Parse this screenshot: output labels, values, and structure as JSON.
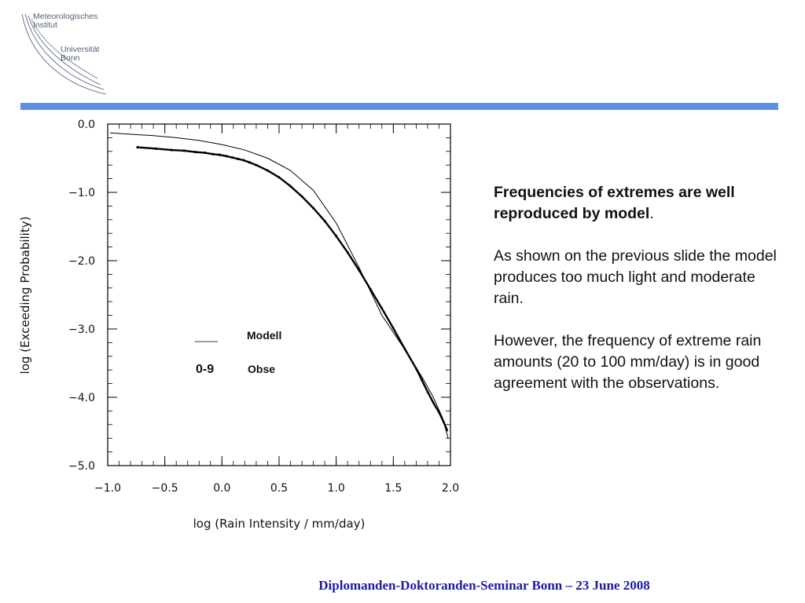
{
  "logo": {
    "line1": "Meteorologisches",
    "line2": "Institut",
    "line3": "Universität",
    "line4": "Bonn"
  },
  "colors": {
    "bar": "#5f8fe0",
    "footer": "#1a1aa6",
    "logo": "#55607a"
  },
  "chart_data": {
    "type": "line",
    "xlabel": "log (Rain Intensity / mm/day)",
    "ylabel": "log (Exceeding Probability)",
    "xlim": [
      -1.0,
      2.0
    ],
    "ylim": [
      -5.0,
      0.0
    ],
    "xticks": [
      "−1.0",
      "−0.5",
      "0.0",
      "0.5",
      "1.0",
      "1.5",
      "2.0"
    ],
    "yticks": [
      "0.0",
      "−1.0",
      "−2.0",
      "−3.0",
      "−4.0",
      "−5.0"
    ],
    "legend": {
      "line_sample": "____",
      "line_label": "Modell",
      "marker_sample": "0-9",
      "marker_label": "Obse"
    },
    "series": [
      {
        "name": "Modell",
        "style": "line",
        "x": [
          -0.98,
          -0.8,
          -0.6,
          -0.4,
          -0.2,
          0.0,
          0.2,
          0.4,
          0.6,
          0.8,
          1.0,
          1.2,
          1.4,
          1.6,
          1.75,
          1.85,
          1.93,
          1.98
        ],
        "y": [
          -0.13,
          -0.15,
          -0.17,
          -0.2,
          -0.24,
          -0.3,
          -0.38,
          -0.5,
          -0.68,
          -0.97,
          -1.45,
          -2.1,
          -2.8,
          -3.3,
          -3.7,
          -4.0,
          -4.3,
          -4.6
        ]
      },
      {
        "name": "Obse",
        "style": "markers",
        "x": [
          -0.74,
          -0.58,
          -0.44,
          -0.33,
          -0.23,
          -0.15,
          -0.08,
          -0.02,
          0.04,
          0.09,
          0.14,
          0.19,
          0.24,
          0.3,
          0.4,
          0.5,
          0.6,
          0.7,
          0.8,
          0.9,
          1.0,
          1.1,
          1.2,
          1.3,
          1.4,
          1.5,
          1.6,
          1.7,
          1.75,
          1.8,
          1.85,
          1.9,
          1.94,
          1.97
        ],
        "y": [
          -0.34,
          -0.36,
          -0.38,
          -0.39,
          -0.41,
          -0.42,
          -0.44,
          -0.45,
          -0.47,
          -0.49,
          -0.51,
          -0.53,
          -0.56,
          -0.6,
          -0.68,
          -0.78,
          -0.91,
          -1.06,
          -1.23,
          -1.42,
          -1.64,
          -1.88,
          -2.14,
          -2.42,
          -2.7,
          -2.99,
          -3.29,
          -3.58,
          -3.75,
          -3.92,
          -4.08,
          -4.22,
          -4.36,
          -4.48
        ]
      }
    ]
  },
  "text": {
    "para1_bold": "Frequencies of extremes are well reproduced by model",
    "para1_end": ".",
    "para2": "As shown on the previous slide the model produces too much light and moderate rain.",
    "para3": "However, the frequency of extreme rain amounts (20 to 100 mm/day) is in good agreement with the observations."
  },
  "footer": "Diplomanden-Doktoranden-Seminar Bonn – 23 June 2008"
}
